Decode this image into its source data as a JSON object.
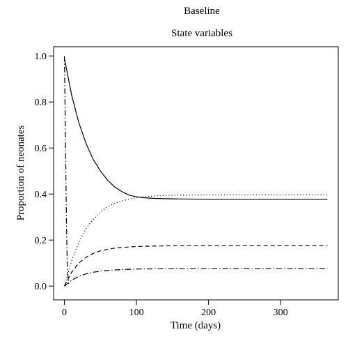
{
  "chart_data": {
    "type": "line",
    "title": "Baseline",
    "subtitle": "State variables",
    "xlabel": "Time (days)",
    "ylabel": "Proportion of neonates",
    "xlim": [
      -15,
      380
    ],
    "ylim": [
      -0.06,
      1.04
    ],
    "x_ticks": [
      0,
      100,
      200,
      300
    ],
    "y_ticks": [
      0.0,
      0.2,
      0.4,
      0.6,
      0.8,
      1.0
    ],
    "y_tick_labels": [
      "0.0",
      "0.2",
      "0.4",
      "0.6",
      "0.8",
      "1.0"
    ],
    "x_tick_labels": [
      "0",
      "100",
      "200",
      "300"
    ],
    "grid": false,
    "series": [
      {
        "line_style": "solid",
        "x": [
          0,
          10,
          20,
          30,
          40,
          50,
          60,
          70,
          80,
          90,
          100,
          110,
          125,
          150,
          175,
          200,
          250,
          300,
          365
        ],
        "values": [
          0.99,
          0.83,
          0.71,
          0.62,
          0.55,
          0.5,
          0.46,
          0.43,
          0.41,
          0.395,
          0.388,
          0.384,
          0.381,
          0.379,
          0.378,
          0.377,
          0.377,
          0.377,
          0.377
        ]
      },
      {
        "line_style": "dotted",
        "x": [
          0,
          10,
          20,
          30,
          40,
          50,
          60,
          70,
          80,
          90,
          100,
          110,
          125,
          150,
          200,
          300,
          365
        ],
        "values": [
          0.0,
          0.11,
          0.19,
          0.25,
          0.29,
          0.32,
          0.345,
          0.36,
          0.37,
          0.378,
          0.384,
          0.388,
          0.392,
          0.395,
          0.396,
          0.396,
          0.396
        ]
      },
      {
        "line_style": "dashed",
        "x": [
          0,
          10,
          20,
          30,
          40,
          50,
          60,
          70,
          80,
          90,
          100,
          125,
          150,
          200,
          300,
          365
        ],
        "values": [
          0.0,
          0.06,
          0.1,
          0.125,
          0.142,
          0.153,
          0.16,
          0.165,
          0.168,
          0.17,
          0.172,
          0.174,
          0.175,
          0.175,
          0.175,
          0.175
        ]
      },
      {
        "line_style": "dashdot",
        "x": [
          0,
          10,
          20,
          30,
          40,
          50,
          60,
          70,
          80,
          90,
          100,
          125,
          150,
          200,
          300,
          365
        ],
        "values": [
          0.0,
          0.025,
          0.042,
          0.053,
          0.06,
          0.065,
          0.068,
          0.07,
          0.072,
          0.073,
          0.074,
          0.075,
          0.075,
          0.075,
          0.075,
          0.075
        ]
      },
      {
        "line_style": "dashdot-vertical",
        "x": [
          0,
          1,
          2,
          3,
          4,
          6
        ],
        "values": [
          1.0,
          0.75,
          0.5,
          0.25,
          0.08,
          0.01
        ]
      }
    ]
  }
}
